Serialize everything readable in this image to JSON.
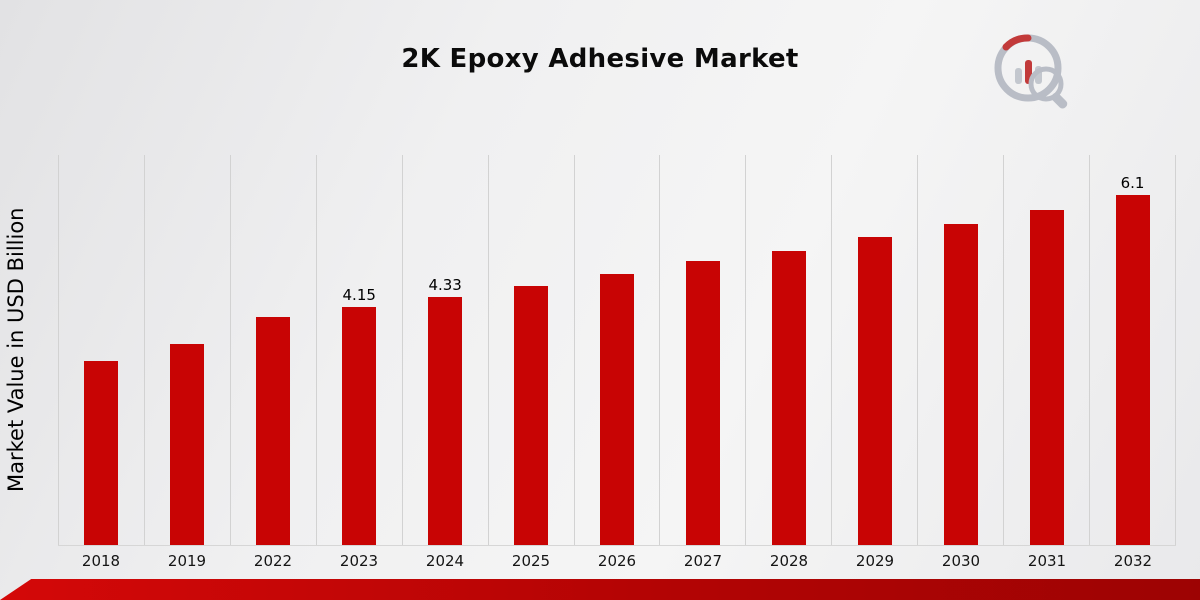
{
  "chart_data": {
    "type": "bar",
    "title": "2K Epoxy Adhesive Market",
    "ylabel": "Market Value in USD Billion",
    "xlabel": "",
    "categories": [
      "2018",
      "2019",
      "2022",
      "2023",
      "2024",
      "2025",
      "2026",
      "2027",
      "2028",
      "2029",
      "2030",
      "2031",
      "2032"
    ],
    "values": [
      3.2,
      3.5,
      3.97,
      4.15,
      4.33,
      4.52,
      4.72,
      4.95,
      5.12,
      5.37,
      5.59,
      5.85,
      6.1
    ],
    "data_labels": {
      "2023": "4.15",
      "2024": "4.33",
      "2032": "6.1"
    },
    "ylim": [
      0,
      6.8
    ],
    "bar_color": "#C80404",
    "grid": "vertical-category-separators",
    "legend": "none"
  },
  "colors": {
    "accent_red": "#C80404",
    "banner_red": "#B30404",
    "gridline_gray": "#D2D2D2",
    "logo_gray": "#B9BDC6"
  },
  "icons": {
    "logo": "bar-chart-magnifier-logo"
  }
}
